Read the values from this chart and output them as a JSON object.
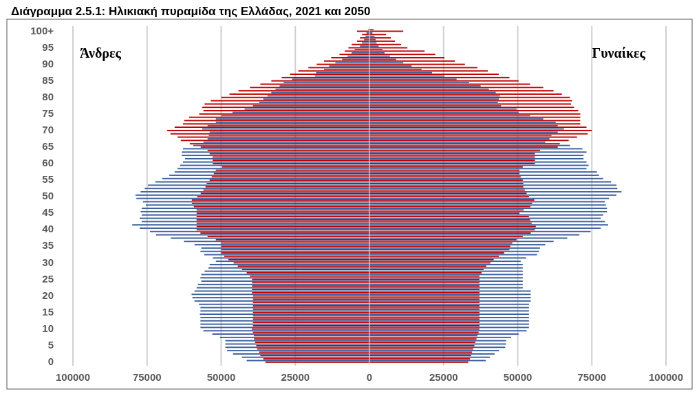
{
  "chart_data": {
    "type": "bar",
    "orientation": "horizontal",
    "title": "Διάγραμμα 2.5.1: Ηλικιακή πυραμίδα της Ελλάδας, 2021 και 2050",
    "annotations": [
      "Άνδρες",
      "Γυναίκες"
    ],
    "categories": [
      "100+",
      null,
      null,
      null,
      null,
      "95",
      null,
      null,
      null,
      null,
      "90",
      null,
      null,
      null,
      null,
      "85",
      null,
      null,
      null,
      null,
      "80",
      null,
      null,
      null,
      null,
      "75",
      null,
      null,
      null,
      null,
      "70",
      null,
      null,
      null,
      null,
      "65",
      null,
      null,
      null,
      null,
      "60",
      null,
      null,
      null,
      null,
      "55",
      null,
      null,
      null,
      null,
      "50",
      null,
      null,
      null,
      null,
      "45",
      null,
      null,
      null,
      null,
      "40",
      null,
      null,
      null,
      null,
      "35",
      null,
      null,
      null,
      null,
      "30",
      null,
      null,
      null,
      null,
      "25",
      null,
      null,
      null,
      null,
      "20",
      null,
      null,
      null,
      null,
      "15",
      null,
      null,
      null,
      null,
      "10",
      null,
      null,
      null,
      null,
      "5",
      null,
      null,
      null,
      null,
      "0"
    ],
    "series": [
      {
        "color": "#3b5f9e",
        "values": [
          -400,
          -1000,
          -1300,
          -1800,
          -2500,
          -3200,
          -5000,
          -6000,
          -7400,
          -9200,
          -11500,
          -13600,
          -15300,
          -18000,
          -18400,
          -26100,
          -28900,
          -30300,
          -31700,
          -33100,
          -34400,
          -35800,
          -37200,
          -39300,
          -42100,
          -46200,
          -50000,
          -51800,
          -51800,
          -54600,
          -56400,
          -53900,
          -54200,
          -54600,
          -56000,
          -59400,
          -62900,
          -63300,
          -63300,
          -62200,
          -62900,
          -63900,
          -64700,
          -65700,
          -67500,
          -69900,
          -72200,
          -74700,
          -75800,
          -77200,
          -78900,
          -78600,
          -76400,
          -75400,
          -76800,
          -77200,
          -76800,
          -77500,
          -76800,
          -80000,
          -77500,
          -74000,
          -72000,
          -67000,
          -62600,
          -59000,
          -56700,
          -57000,
          -55700,
          -52800,
          -51800,
          -53900,
          -54300,
          -55600,
          -56700,
          -57000,
          -56700,
          -57800,
          -58300,
          -59000,
          -60000,
          -59700,
          -59000,
          -57500,
          -57000,
          -57000,
          -57200,
          -57000,
          -57000,
          -57000,
          -57000,
          -56000,
          -53000,
          -50400,
          -48600,
          -48600,
          -48600,
          -48000,
          -46000,
          -43000,
          -41400
        ]
      },
      {
        "color": "#3b5f9e",
        "values": [
          1400,
          1000,
          1700,
          2100,
          2400,
          3100,
          4400,
          5100,
          6900,
          9000,
          11400,
          14200,
          17600,
          21100,
          25300,
          29400,
          33600,
          37500,
          40300,
          42600,
          44000,
          43600,
          43300,
          44400,
          49600,
          50300,
          54200,
          58600,
          62800,
          63500,
          65600,
          63500,
          61400,
          60700,
          59300,
          67600,
          71800,
          73200,
          72200,
          72200,
          73200,
          73900,
          73200,
          76700,
          77400,
          78800,
          81500,
          83300,
          83600,
          85000,
          83300,
          80800,
          79400,
          79700,
          80100,
          80100,
          78800,
          78000,
          79400,
          80500,
          78000,
          74600,
          70800,
          66700,
          62100,
          59300,
          57500,
          57200,
          56500,
          52800,
          51000,
          51700,
          51700,
          51700,
          51700,
          51700,
          51700,
          51700,
          51700,
          54400,
          54400,
          54400,
          54400,
          53800,
          53800,
          53800,
          53800,
          53800,
          53800,
          53800,
          53800,
          53000,
          50300,
          47800,
          46100,
          46100,
          45800,
          43700,
          42200,
          40600,
          39200
        ]
      },
      {
        "color": "#c00000",
        "values": [
          -4200,
          -2500,
          -3200,
          -4200,
          -6000,
          -7100,
          -8300,
          -10100,
          -12900,
          -15300,
          -17800,
          -20600,
          -24000,
          -26800,
          -29600,
          -33100,
          -36800,
          -40300,
          -44200,
          -47200,
          -50000,
          -53500,
          -55600,
          -56400,
          -56000,
          -57400,
          -60800,
          -62500,
          -62900,
          -65700,
          -68200,
          -67100,
          -64700,
          -63600,
          -60600,
          -56900,
          -54600,
          -53900,
          -52900,
          -52900,
          -52900,
          -49700,
          -51800,
          -52500,
          -53200,
          -53900,
          -54900,
          -55300,
          -56000,
          -56900,
          -58100,
          -59900,
          -59900,
          -59200,
          -58300,
          -58300,
          -58300,
          -58300,
          -58300,
          -58300,
          -58300,
          -57000,
          -54600,
          -51800,
          -50000,
          -50000,
          -50000,
          -50000,
          -49000,
          -47600,
          -45800,
          -44400,
          -43000,
          -41400,
          -40300,
          -39600,
          -39600,
          -39600,
          -39600,
          -39600,
          -39300,
          -39300,
          -39300,
          -39300,
          -39300,
          -39300,
          -39300,
          -39300,
          -39300,
          -39300,
          -39700,
          -39300,
          -39000,
          -38900,
          -38600,
          -38200,
          -37900,
          -37200,
          -36800,
          -35800,
          -35100
        ]
      },
      {
        "color": "#c00000",
        "values": [
          11400,
          5600,
          7200,
          8600,
          10700,
          12800,
          18600,
          22200,
          25300,
          28800,
          32200,
          36400,
          39900,
          43600,
          47200,
          50300,
          54200,
          58600,
          62100,
          64900,
          67600,
          68300,
          68000,
          69000,
          70400,
          71100,
          71100,
          71100,
          71100,
          73200,
          75000,
          73600,
          70000,
          67200,
          64200,
          63500,
          57500,
          55800,
          55800,
          55800,
          55800,
          51700,
          50600,
          50600,
          51000,
          51700,
          51900,
          51900,
          52400,
          53000,
          53800,
          55600,
          54900,
          54300,
          52000,
          50600,
          53800,
          54200,
          54700,
          56100,
          55800,
          54400,
          51700,
          49600,
          48200,
          47500,
          47200,
          45400,
          43600,
          41900,
          40800,
          39400,
          38500,
          37800,
          37100,
          37100,
          37100,
          37100,
          37100,
          37100,
          37100,
          37100,
          37100,
          37100,
          37100,
          37100,
          37100,
          37100,
          37100,
          37100,
          37100,
          36800,
          36400,
          36100,
          35700,
          35400,
          35000,
          34600,
          34300,
          33900,
          33300
        ]
      }
    ],
    "xlim": [
      -100000,
      100000
    ],
    "xticks": [
      {
        "value": -100000,
        "label": "100000"
      },
      {
        "value": -75000,
        "label": "75000"
      },
      {
        "value": -50000,
        "label": "50000"
      },
      {
        "value": -25000,
        "label": "25000"
      },
      0,
      25000,
      50000,
      75000,
      100000
    ],
    "grid": "x"
  }
}
